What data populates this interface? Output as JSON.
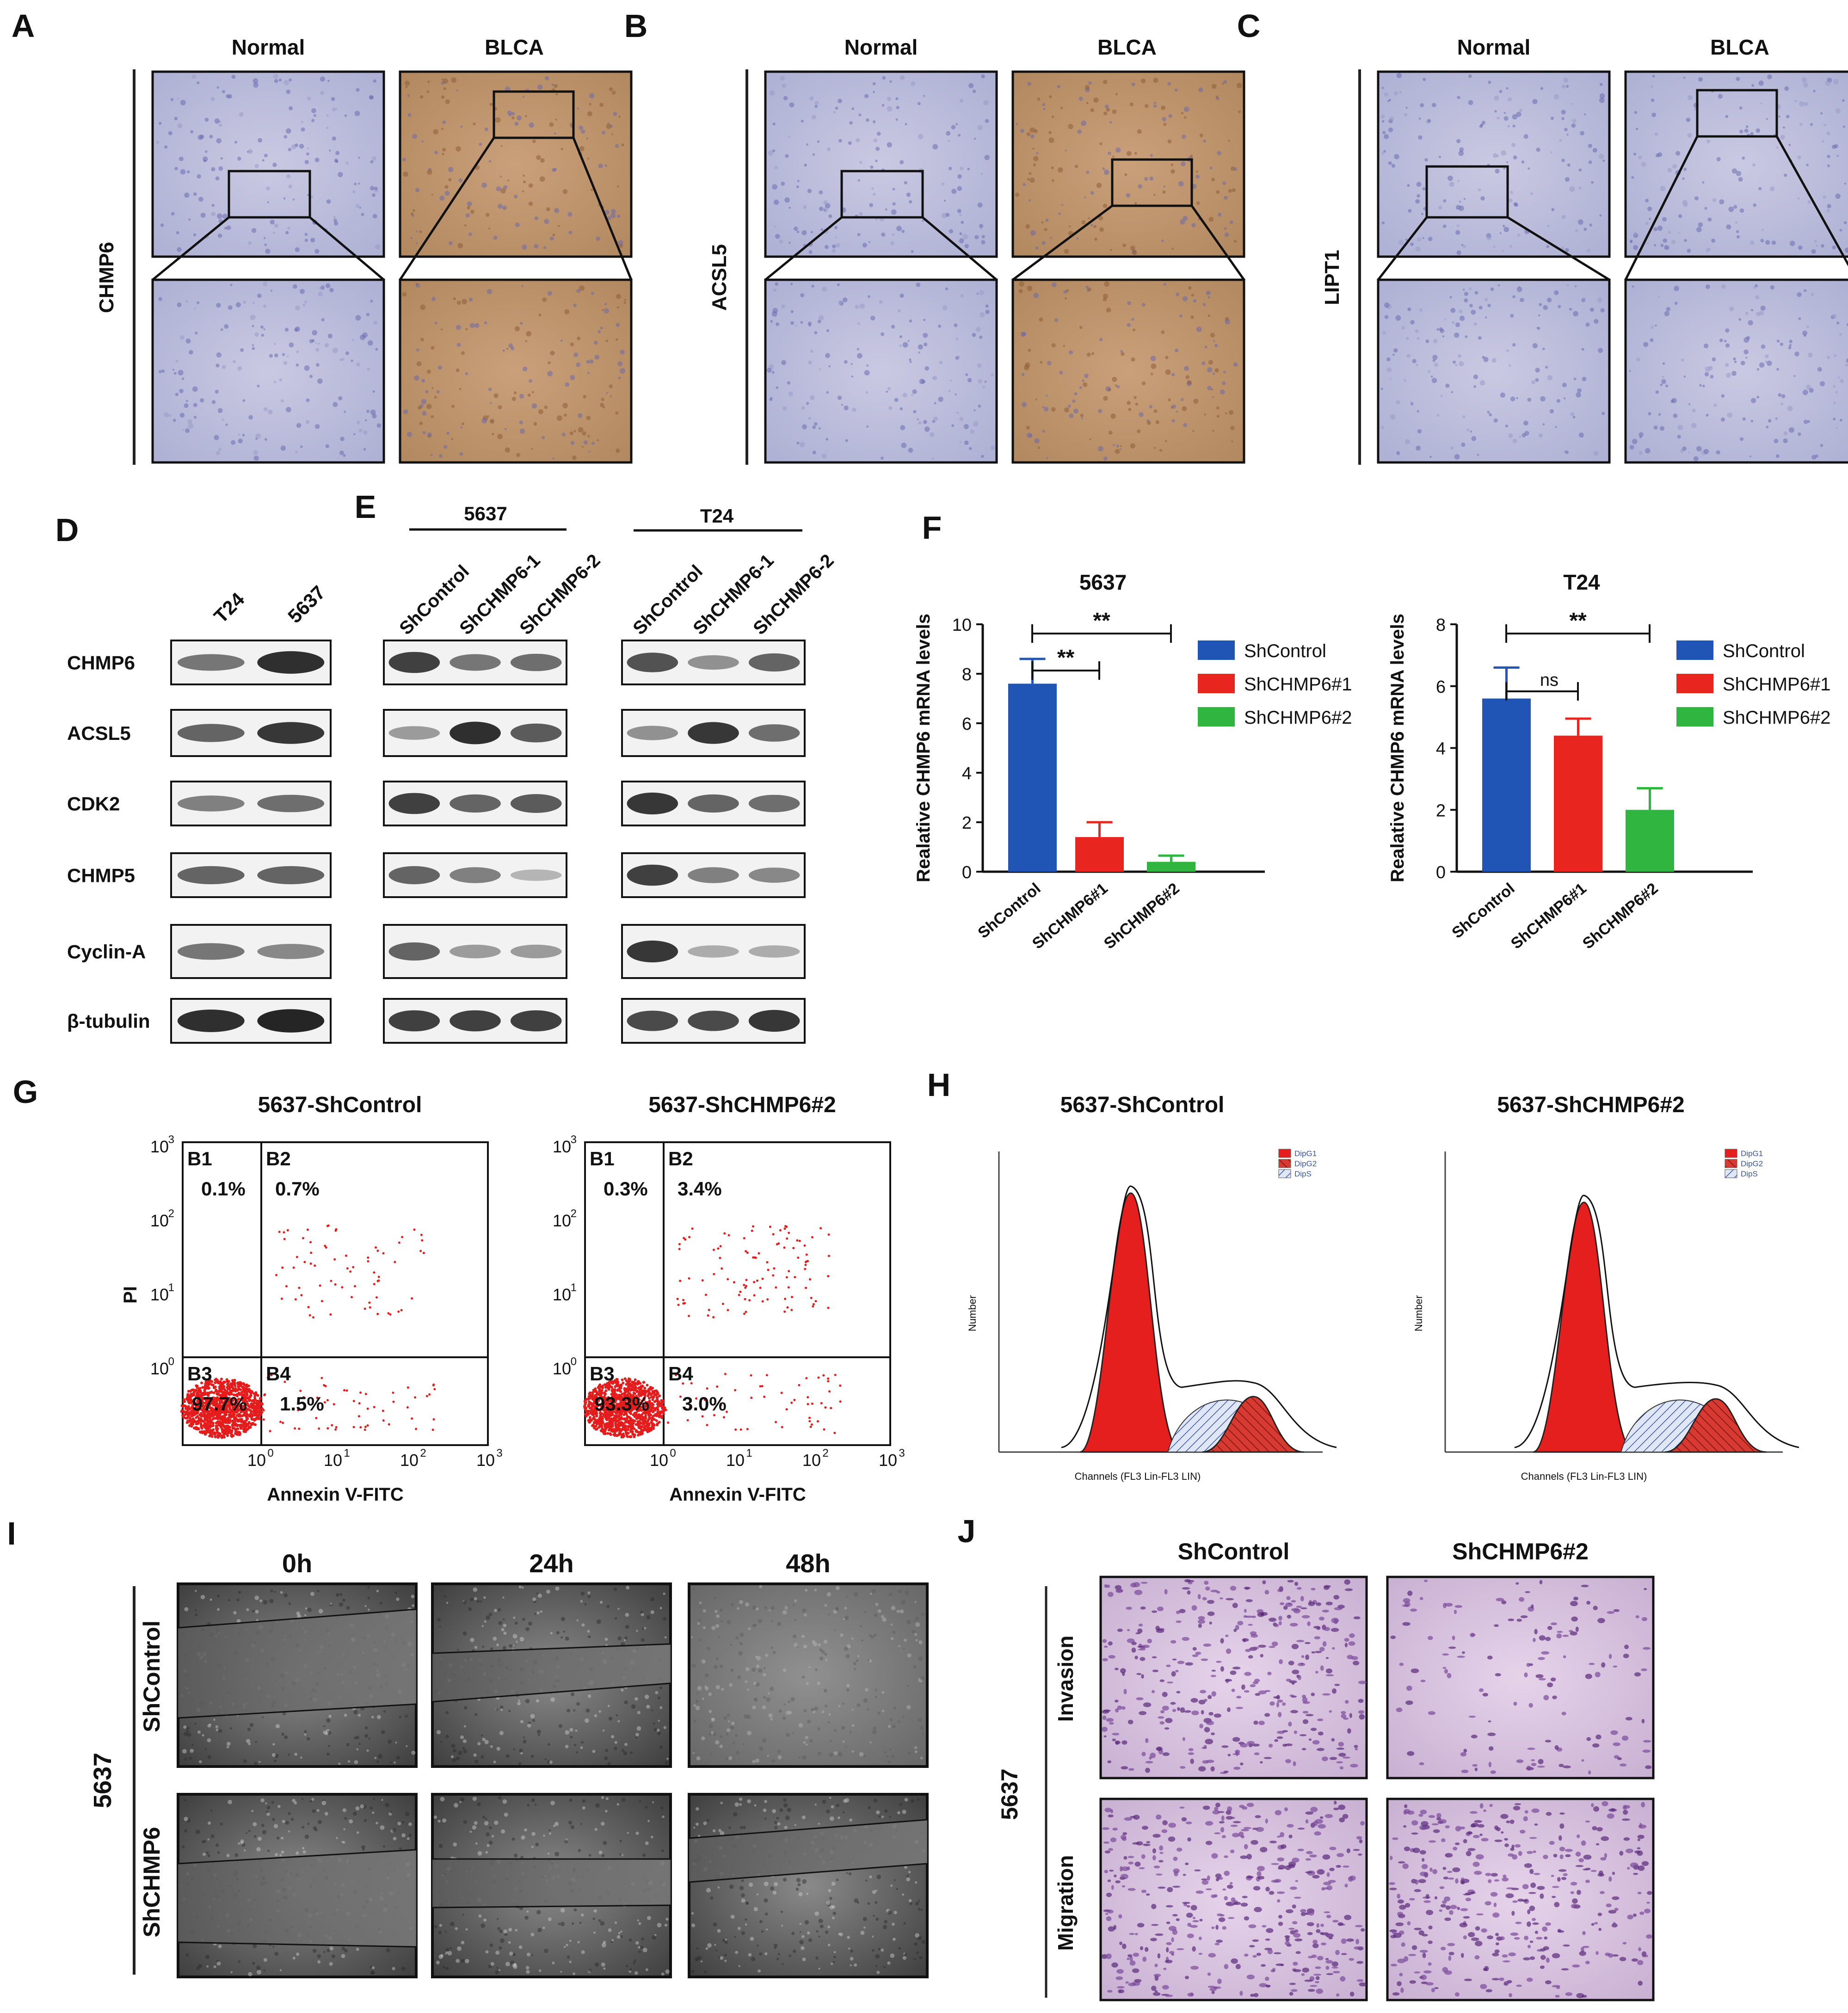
{
  "panels": {
    "A": {
      "letter": "A",
      "col_normal": "Normal",
      "col_tumor": "BLCA",
      "row_label": "CHMP6"
    },
    "B": {
      "letter": "B",
      "col_normal": "Normal",
      "col_tumor": "BLCA",
      "row_label": "ACSL5"
    },
    "C": {
      "letter": "C",
      "col_normal": "Normal",
      "col_tumor": "BLCA",
      "row_label": "LIPT1"
    },
    "D": {
      "letter": "D",
      "lanes": [
        "T24",
        "5637"
      ],
      "proteins": [
        "CHMP6",
        "ACSL5",
        "CDK2",
        "CHMP5",
        "Cyclin-A",
        "β-tubulin"
      ]
    },
    "E": {
      "letter": "E",
      "group_5637": "5637",
      "group_T24": "T24",
      "lanes": [
        "ShControl",
        "ShCHMP6-1",
        "ShCHMP6-2"
      ]
    },
    "F": {
      "letter": "F"
    },
    "G": {
      "letter": "G",
      "title_left": "5637-ShControl",
      "title_right": "5637-ShCHMP6#2",
      "xlabel": "Annexin V-FITC",
      "ylabel": "PI",
      "ticks": [
        "10",
        "0",
        "1",
        "2",
        "3"
      ],
      "left": {
        "B1": "0.1%",
        "B2": "0.7%",
        "B3": "97.7%",
        "B4": "1.5%"
      },
      "right": {
        "B1": "0.3%",
        "B2": "3.4%",
        "B3": "93.3%",
        "B4": "3.0%"
      },
      "quads": [
        "B1",
        "B2",
        "B3",
        "B4"
      ]
    },
    "H": {
      "letter": "H",
      "title_left": "5637-ShControl",
      "title_right": "5637-ShCHMP6#2",
      "xlabel": "Channels (FL3 Lin-FL3 LIN)",
      "ylabel": "Number",
      "legend": [
        "DipG1",
        "DipG2",
        "DipS"
      ]
    },
    "I": {
      "letter": "I",
      "times": [
        "0h",
        "24h",
        "48h"
      ],
      "rows": [
        "ShControl",
        "ShCHMP6"
      ],
      "cell_line": "5637"
    },
    "J": {
      "letter": "J",
      "cols": [
        "ShControl",
        "ShCHMP6#2"
      ],
      "rows": [
        "Invasion",
        "Migration"
      ],
      "cell_line": "5637"
    }
  },
  "chart_data": [
    {
      "type": "bar",
      "title": "5637",
      "ylabel": "Realative CHMP6 mRNA levels",
      "categories": [
        "ShControl",
        "ShCHMP6#1",
        "ShCHMP6#2"
      ],
      "values": [
        7.6,
        1.4,
        0.4
      ],
      "errors": [
        1.0,
        0.6,
        0.25
      ],
      "ylim": [
        0,
        10
      ],
      "yticks": [
        "0",
        "2",
        "4",
        "6",
        "8",
        "10"
      ],
      "colors": [
        "#2155b5",
        "#e8261f",
        "#2fb540"
      ],
      "legend": [
        "ShControl",
        "ShCHMP6#1",
        "ShCHMP6#2"
      ],
      "significance": [
        {
          "from": 0,
          "to": 1,
          "label": "**"
        },
        {
          "from": 0,
          "to": 2,
          "label": "**"
        }
      ]
    },
    {
      "type": "bar",
      "title": "T24",
      "ylabel": "Realative CHMP6 mRNA levels",
      "categories": [
        "ShControl",
        "ShCHMP6#1",
        "ShCHMP6#2"
      ],
      "values": [
        5.6,
        4.4,
        2.0
      ],
      "errors": [
        1.0,
        0.55,
        0.7
      ],
      "ylim": [
        0,
        8
      ],
      "yticks": [
        "0",
        "2",
        "4",
        "6",
        "8"
      ],
      "colors": [
        "#2155b5",
        "#e8261f",
        "#2fb540"
      ],
      "legend": [
        "ShControl",
        "ShCHMP6#1",
        "ShCHMP6#2"
      ],
      "significance": [
        {
          "from": 0,
          "to": 1,
          "label": "ns"
        },
        {
          "from": 0,
          "to": 2,
          "label": "**"
        }
      ]
    }
  ]
}
